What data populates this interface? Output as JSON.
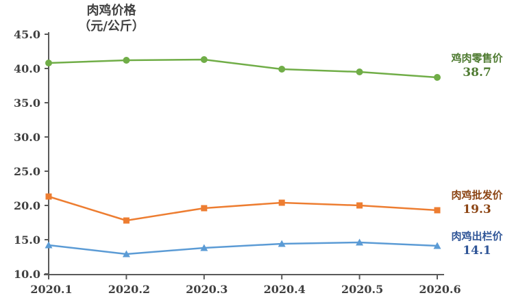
{
  "chart_data": {
    "type": "line",
    "title": "肉鸡价格（元/公斤）",
    "title_lines": [
      "肉鸡价格",
      "（元/公斤）"
    ],
    "xlabel": "",
    "ylabel": "元/公斤",
    "categories": [
      "2020.1",
      "2020.2",
      "2020.3",
      "2020.4",
      "2020.5",
      "2020.6"
    ],
    "series": [
      {
        "name": "鸡肉零售价",
        "values": [
          40.8,
          41.2,
          41.3,
          39.9,
          39.5,
          38.7
        ],
        "color": "#70AD47",
        "marker": "circle",
        "end_label_value": "38.7",
        "label_color": "#4E7A30"
      },
      {
        "name": "肉鸡批发价",
        "values": [
          21.3,
          17.8,
          19.6,
          20.4,
          20.0,
          19.3
        ],
        "color": "#ED7D31",
        "marker": "square",
        "end_label_value": "19.3",
        "label_color": "#8C4514"
      },
      {
        "name": "肉鸡出栏价",
        "values": [
          14.2,
          12.9,
          13.8,
          14.4,
          14.6,
          14.1
        ],
        "color": "#5B9BD5",
        "marker": "triangle",
        "end_label_value": "14.1",
        "label_color": "#2F5597"
      }
    ],
    "ylim": [
      10,
      45
    ],
    "ytick_step": 5,
    "yticks": [
      "45.0",
      "40.0",
      "35.0",
      "30.0",
      "25.0",
      "20.0",
      "15.0",
      "10.0"
    ],
    "grid": false,
    "legend_position": "right-annotations",
    "axis_color": "#595959",
    "text_color": "#404040"
  }
}
